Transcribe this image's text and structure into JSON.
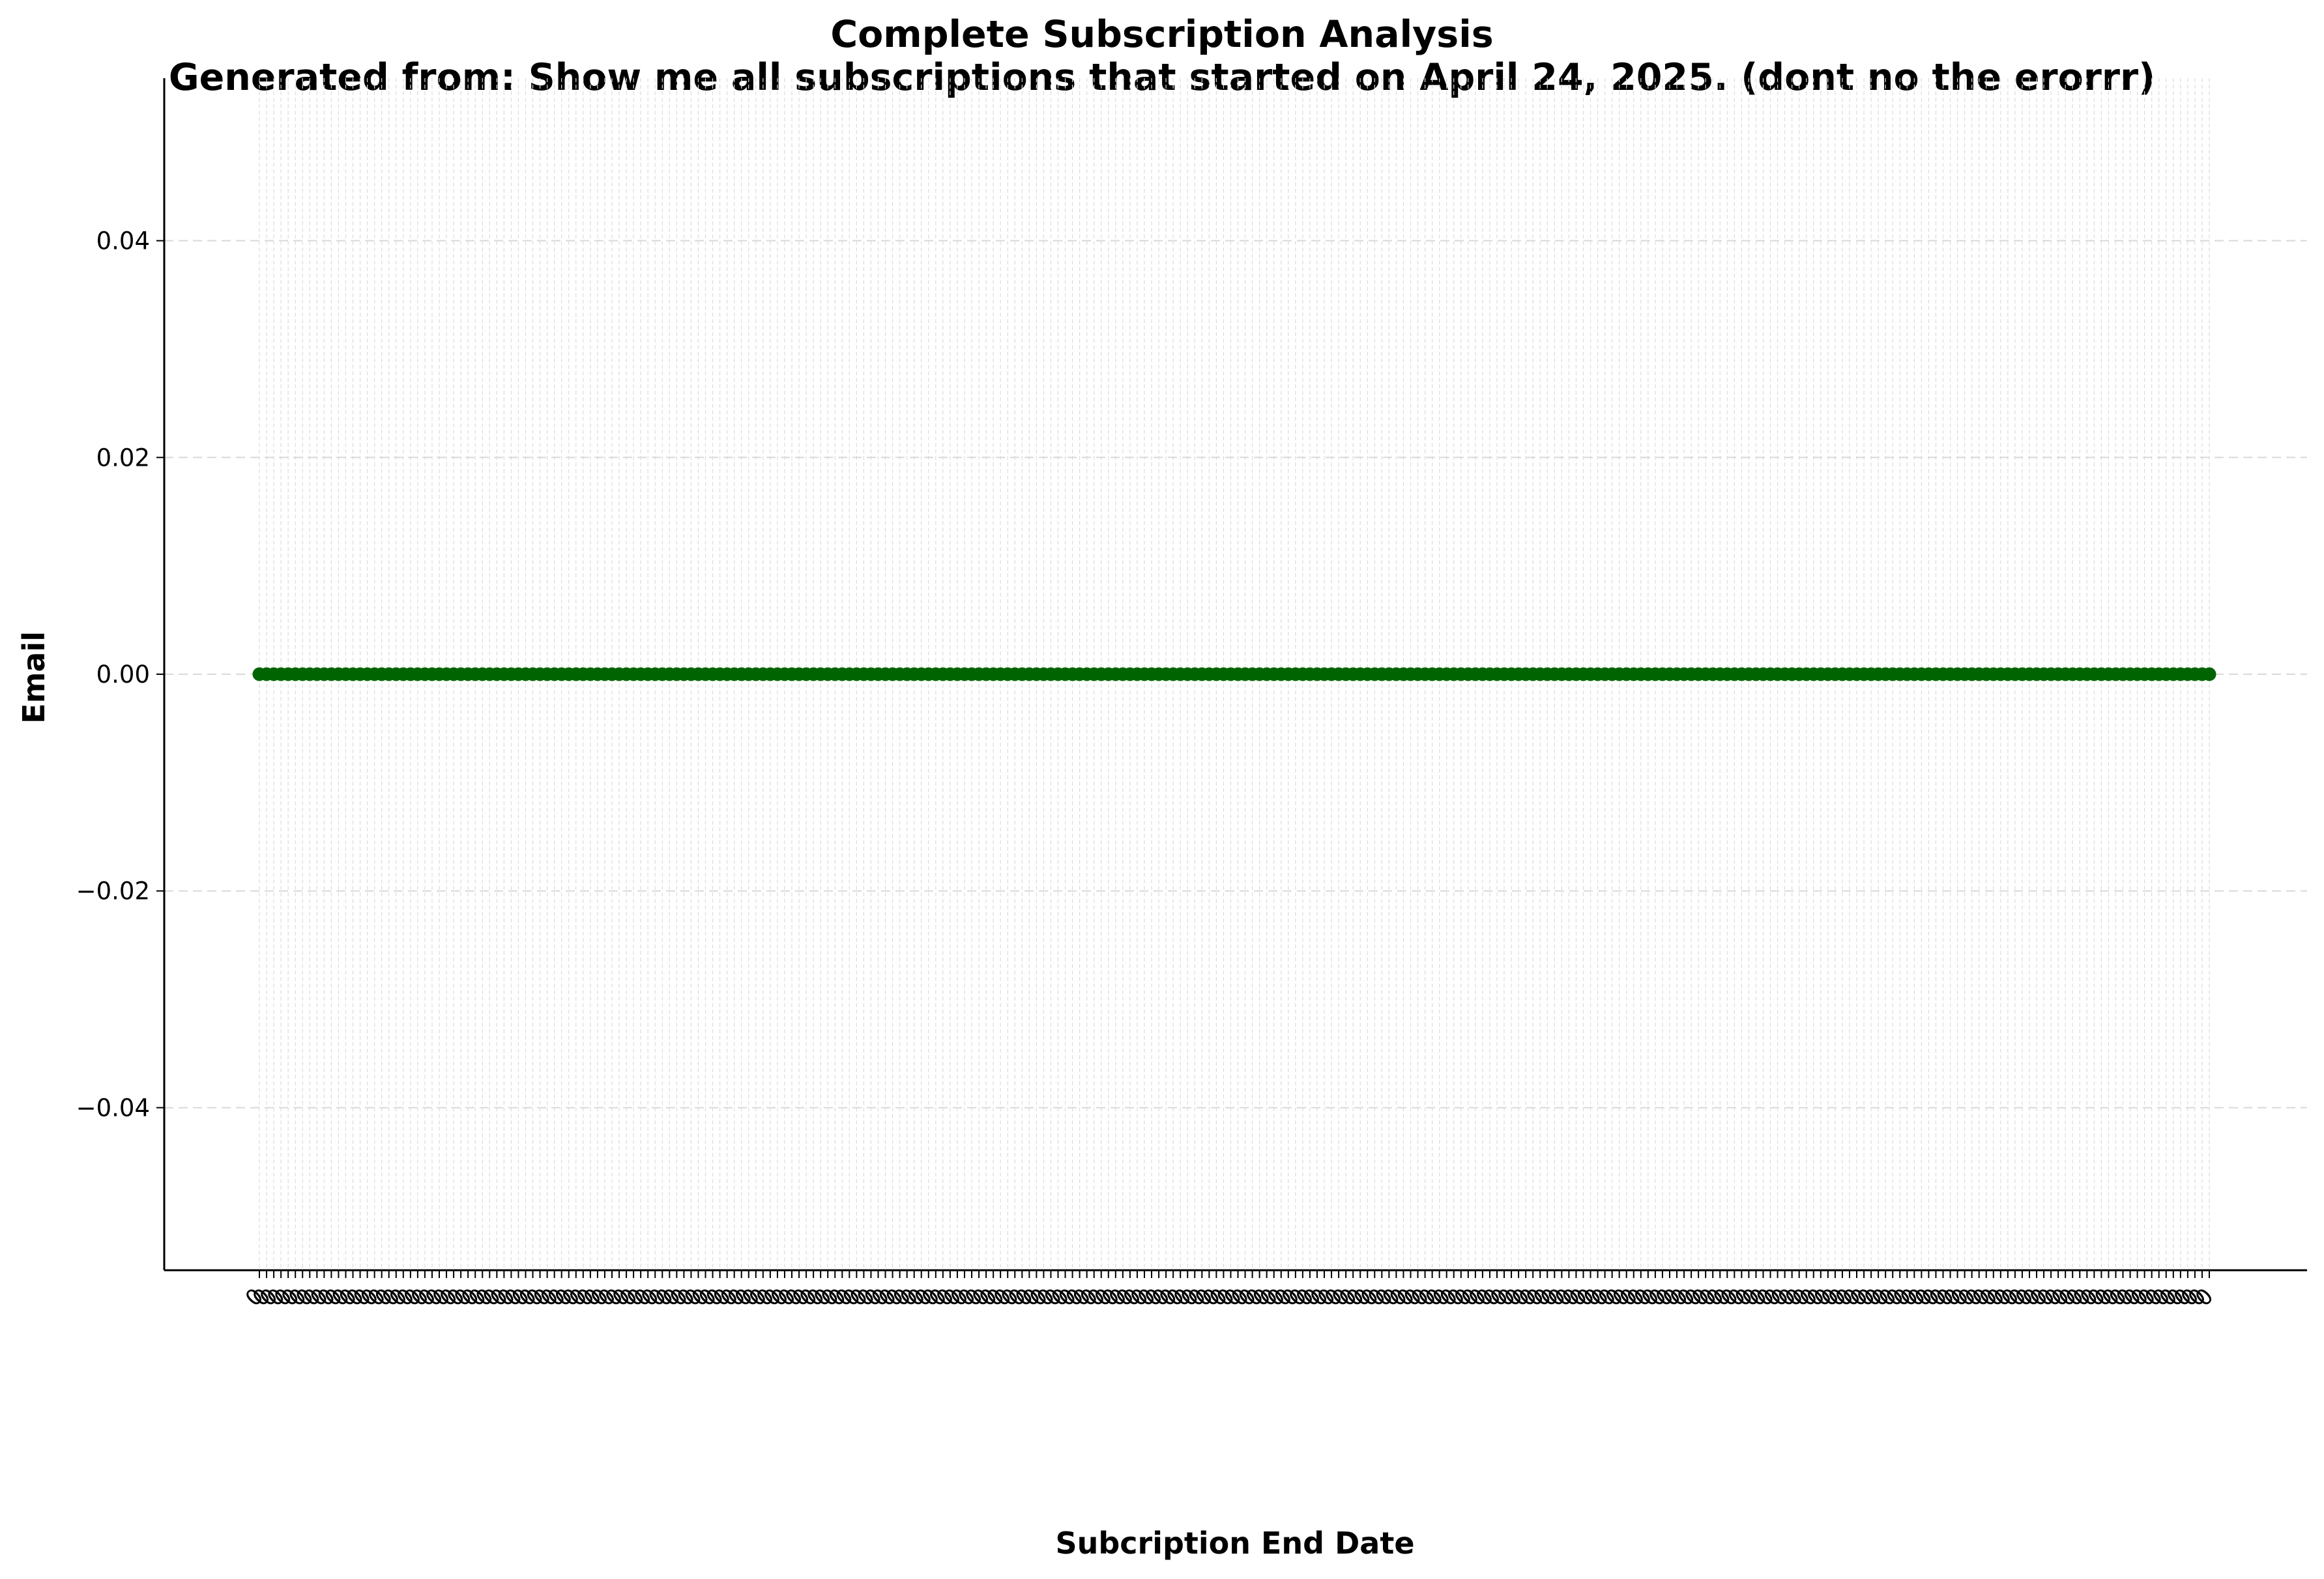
{
  "chart_data": {
    "type": "line",
    "title": "Complete Subscription Analysis",
    "subtitle": "Generated from: Show me all subscriptions that started on April 24, 2025. (dont no the erorrr)",
    "xlabel": "Subcription End Date",
    "ylabel": "Email",
    "ylim": [
      -0.055,
      0.055
    ],
    "yticks": [
      -0.04,
      -0.02,
      0.0,
      0.02,
      0.04
    ],
    "ytick_labels": [
      "−0.04",
      "−0.02",
      "0.00",
      "0.02",
      "0.04"
    ],
    "grid": true,
    "legend": "none",
    "series_color": "#006400",
    "x_label_placeholder": "0",
    "series": [
      {
        "values": [
          0,
          0,
          0,
          0,
          0,
          0,
          0,
          0,
          0,
          0,
          0,
          0,
          0,
          0,
          0,
          0,
          0,
          0,
          0,
          0,
          0,
          0,
          0,
          0,
          0,
          0,
          0,
          0,
          0,
          0,
          0,
          0,
          0,
          0,
          0,
          0,
          0,
          0,
          0,
          0,
          0,
          0,
          0,
          0,
          0,
          0,
          0,
          0,
          0,
          0,
          0,
          0,
          0,
          0,
          0,
          0,
          0,
          0,
          0,
          0,
          0,
          0,
          0,
          0,
          0,
          0,
          0,
          0,
          0,
          0,
          0,
          0,
          0,
          0,
          0,
          0,
          0,
          0,
          0,
          0,
          0,
          0,
          0,
          0,
          0,
          0,
          0,
          0,
          0,
          0,
          0,
          0,
          0,
          0,
          0,
          0,
          0,
          0,
          0,
          0,
          0,
          0,
          0,
          0,
          0,
          0,
          0,
          0,
          0,
          0,
          0,
          0,
          0,
          0,
          0,
          0,
          0,
          0,
          0,
          0,
          0,
          0,
          0,
          0,
          0,
          0,
          0,
          0,
          0,
          0,
          0,
          0,
          0,
          0,
          0,
          0,
          0,
          0,
          0,
          0,
          0,
          0,
          0,
          0,
          0,
          0,
          0,
          0,
          0,
          0,
          0,
          0,
          0,
          0,
          0,
          0,
          0,
          0,
          0,
          0,
          0,
          0,
          0,
          0,
          0,
          0,
          0,
          0,
          0,
          0,
          0,
          0,
          0,
          0,
          0,
          0,
          0,
          0,
          0,
          0,
          0,
          0,
          0,
          0,
          0,
          0,
          0,
          0,
          0,
          0,
          0,
          0,
          0,
          0,
          0,
          0,
          0,
          0,
          0,
          0,
          0,
          0,
          0,
          0,
          0,
          0,
          0,
          0,
          0,
          0,
          0,
          0,
          0,
          0,
          0,
          0,
          0,
          0,
          0,
          0,
          0,
          0,
          0,
          0,
          0,
          0,
          0,
          0,
          0,
          0,
          0,
          0,
          0,
          0,
          0,
          0,
          0,
          0,
          0,
          0,
          0,
          0,
          0,
          0,
          0,
          0,
          0,
          0,
          0,
          0,
          0,
          0,
          0,
          0,
          0,
          0,
          0,
          0,
          0,
          0,
          0,
          0,
          0,
          0,
          0,
          0,
          0,
          0,
          0,
          0,
          0,
          0
        ]
      }
    ]
  }
}
